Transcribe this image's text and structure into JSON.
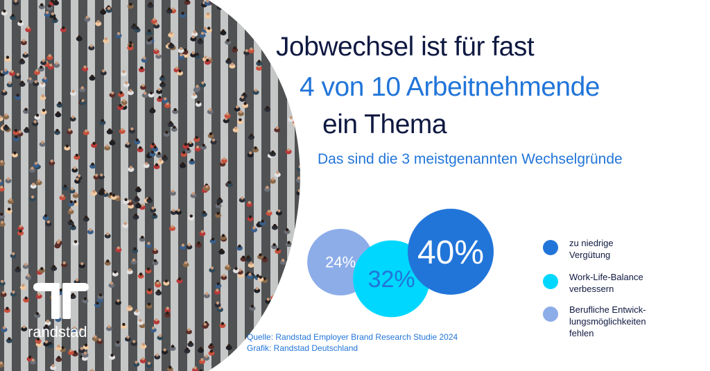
{
  "headline": {
    "line1": "Jobwechsel ist für fast",
    "line2": "4 von 10 Arbeitnehmende",
    "line3": "ein Thema"
  },
  "subheadline": "Das sind die 3 meistgenannten Wechselgründe",
  "brand": {
    "name": "randstad"
  },
  "chart_data": {
    "type": "bubble",
    "title": "Das sind die 3 meistgenannten Wechselgründe",
    "unit": "%",
    "categories": [
      "zu niedrige Vergütung",
      "Work-Life-Balance verbessern",
      "Berufliche Entwicklungsmöglichkeiten fehlen"
    ],
    "values": [
      40,
      32,
      24
    ],
    "labels": [
      "40%",
      "32%",
      "24%"
    ],
    "colors": [
      "#2175d9",
      "#00d7ff",
      "#8dade9"
    ],
    "label_colors": [
      "#ffffff",
      "#2175d9",
      "#ffffff"
    ],
    "legend": [
      {
        "label": "zu niedrige Vergütung",
        "lines": [
          "zu niedrige",
          "Vergütung"
        ],
        "color": "#2175d9"
      },
      {
        "label": "Work-Life-Balance verbessern",
        "lines": [
          "Work-Life-Balance",
          "verbessern"
        ],
        "color": "#00d7ff"
      },
      {
        "label": "Berufliche Entwicklungsmöglichkeiten fehlen",
        "lines": [
          "Berufliche Entwick-",
          "lungsmöglichkeiten",
          "fehlen"
        ],
        "color": "#8dade9"
      }
    ],
    "legend_position": "right"
  },
  "source": {
    "line1": "Quelle: Randstad Employer Brand Research Studie 2024",
    "line2": "Grafik: Randstad Deutschland"
  },
  "colors": {
    "navy": "#0f1941",
    "blue": "#2175d9",
    "cyan": "#00d7ff",
    "light_blue": "#8dade9"
  }
}
